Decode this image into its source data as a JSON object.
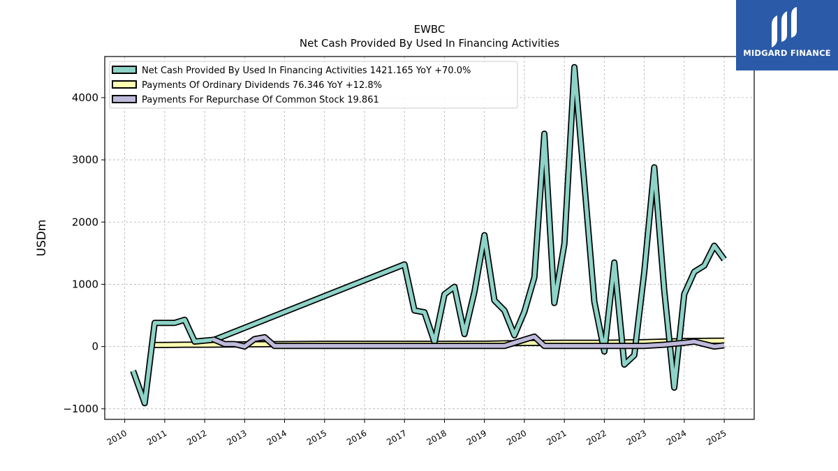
{
  "chart_data": {
    "type": "line",
    "title": "EWBC",
    "subtitle": "Net Cash Provided By Used In Financing Activities",
    "ylabel": "USDm",
    "xlabel": "",
    "xlim": [
      2009.5,
      2025.75
    ],
    "ylim": [
      -1170,
      4660
    ],
    "x_ticks": [
      2010,
      2011,
      2012,
      2013,
      2014,
      2015,
      2016,
      2017,
      2018,
      2019,
      2020,
      2021,
      2022,
      2023,
      2024,
      2025
    ],
    "x_tick_labels": [
      "2010",
      "2011",
      "2012",
      "2013",
      "2014",
      "2015",
      "2016",
      "2017",
      "2018",
      "2019",
      "2020",
      "2021",
      "2022",
      "2023",
      "2024",
      "2025"
    ],
    "y_ticks": [
      -1000,
      0,
      1000,
      2000,
      3000,
      4000
    ],
    "y_tick_labels": [
      "−1000",
      "0",
      "1000",
      "2000",
      "3000",
      "4000"
    ],
    "grid": true,
    "legend_position": "top-left",
    "series": [
      {
        "name": "Net Cash Provided By Used In Financing Activities",
        "legend_label": "Net Cash Provided By Used In Financing Activities  1421.165 YoY +70.0%",
        "color": "#8dd3c7",
        "x": [
          2010.21,
          2010.5,
          2010.75,
          2011.0,
          2011.25,
          2011.5,
          2011.75,
          2012.25,
          2017.0,
          2017.25,
          2017.5,
          2017.75,
          2018.0,
          2018.25,
          2018.5,
          2018.75,
          2019.0,
          2019.25,
          2019.5,
          2019.75,
          2020.0,
          2020.25,
          2020.5,
          2020.75,
          2021.0,
          2021.25,
          2021.5,
          2021.75,
          2022.0,
          2022.25,
          2022.5,
          2022.75,
          2023.0,
          2023.25,
          2023.5,
          2023.75,
          2024.0,
          2024.25,
          2024.5,
          2024.75,
          2025.0
        ],
        "y": [
          -390,
          -910,
          380,
          380,
          380,
          430,
          80,
          110,
          1320,
          580,
          550,
          70,
          840,
          960,
          200,
          880,
          1790,
          740,
          580,
          180,
          560,
          1110,
          3420,
          700,
          1650,
          4490,
          2620,
          720,
          -80,
          1350,
          -290,
          -140,
          1200,
          2880,
          900,
          -660,
          840,
          1200,
          1300,
          1620,
          1400
        ]
      },
      {
        "name": "Payments Of Ordinary Dividends",
        "legend_label": "Payments Of Ordinary Dividends  76.346 YoY +12.8%",
        "color": "#ffffb3",
        "x": [
          2010.75,
          2011.0,
          2011.5,
          2012.0,
          2013.0,
          2015.0,
          2017.0,
          2018.0,
          2019.0,
          2020.0,
          2021.0,
          2022.0,
          2023.0,
          2024.0,
          2025.0
        ],
        "y": [
          25,
          25,
          30,
          30,
          35,
          43,
          43,
          43,
          45,
          58,
          60,
          60,
          70,
          88,
          95
        ]
      },
      {
        "name": "Payments For Repurchase Of Common Stock",
        "legend_label": "Payments For Repurchase Of Common Stock  19.861",
        "color": "#bebada",
        "x": [
          2012.2,
          2012.5,
          2012.75,
          2013.0,
          2013.25,
          2013.5,
          2013.75,
          2016.0,
          2019.5,
          2019.75,
          2020.0,
          2020.25,
          2020.5,
          2021.0,
          2022.0,
          2023.0,
          2023.5,
          2024.0,
          2024.25,
          2024.5,
          2024.75,
          2025.0
        ],
        "y": [
          120,
          40,
          40,
          0,
          120,
          150,
          10,
          10,
          10,
          60,
          110,
          160,
          10,
          10,
          10,
          10,
          30,
          60,
          80,
          40,
          0,
          20
        ]
      }
    ]
  },
  "logo": {
    "text": "MIDGARD FINANCE",
    "background": "#2b5aa8"
  }
}
